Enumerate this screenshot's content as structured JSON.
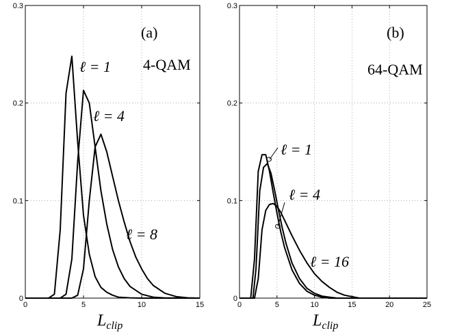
{
  "chart_data": [
    {
      "type": "line",
      "panel_label": "(a)",
      "modulation_label": "4-QAM",
      "xlabel": "L_clip",
      "xlim": [
        0,
        15
      ],
      "ylim": [
        0,
        0.3
      ],
      "xticks": [
        "0",
        "5",
        "10",
        "15"
      ],
      "yticks": [
        "0",
        "0.1",
        "0.2",
        "0.3"
      ],
      "grid": true,
      "series": [
        {
          "name": "ℓ = 1",
          "x": [
            0,
            2,
            2.5,
            3.0,
            3.5,
            4.0,
            4.5,
            5.0,
            5.5,
            6.0,
            6.5,
            7.0,
            7.5,
            8.0,
            9.0,
            10.0,
            15
          ],
          "y": [
            0,
            0,
            0.004,
            0.07,
            0.21,
            0.248,
            0.16,
            0.085,
            0.045,
            0.022,
            0.011,
            0.006,
            0.003,
            0.001,
            0.0003,
            0,
            0
          ]
        },
        {
          "name": "ℓ = 4",
          "x": [
            0,
            3,
            3.5,
            4.0,
            4.5,
            5.0,
            5.5,
            6.0,
            6.5,
            7.0,
            7.5,
            8.0,
            8.5,
            9.0,
            10.0,
            11.0,
            12.0,
            15
          ],
          "y": [
            0,
            0,
            0.004,
            0.04,
            0.14,
            0.213,
            0.2,
            0.155,
            0.11,
            0.076,
            0.05,
            0.032,
            0.02,
            0.012,
            0.004,
            0.001,
            0.0002,
            0
          ]
        },
        {
          "name": "ℓ = 8",
          "x": [
            0,
            4,
            4.5,
            5.0,
            5.5,
            6.0,
            6.5,
            7.0,
            7.5,
            8.0,
            8.5,
            9.0,
            9.5,
            10.0,
            10.5,
            11.0,
            12.0,
            13.0,
            14.0,
            15
          ],
          "y": [
            0,
            0,
            0.003,
            0.03,
            0.1,
            0.155,
            0.168,
            0.15,
            0.125,
            0.1,
            0.078,
            0.058,
            0.042,
            0.03,
            0.02,
            0.013,
            0.005,
            0.0015,
            0.0003,
            0
          ]
        }
      ],
      "annotations": [
        "ℓ = 1",
        "ℓ = 4",
        "ℓ = 8"
      ]
    },
    {
      "type": "line",
      "panel_label": "(b)",
      "modulation_label": "64-QAM",
      "xlabel": "L_clip",
      "xlim": [
        0,
        25
      ],
      "ylim": [
        0,
        0.3
      ],
      "xticks": [
        "0",
        "5",
        "10",
        "15",
        "20",
        "25"
      ],
      "yticks": [
        "0",
        "0.1",
        "0.2",
        "0.3"
      ],
      "grid": true,
      "series": [
        {
          "name": "ℓ = 1",
          "x": [
            0,
            1.5,
            2.0,
            2.5,
            3.0,
            3.5,
            4.0,
            4.5,
            5.0,
            5.5,
            6.0,
            7.0,
            8.0,
            9.0,
            10.0,
            11.0,
            12.0,
            25
          ],
          "y": [
            0,
            0,
            0.04,
            0.13,
            0.147,
            0.147,
            0.13,
            0.108,
            0.087,
            0.068,
            0.052,
            0.029,
            0.015,
            0.007,
            0.003,
            0.001,
            0,
            0
          ]
        },
        {
          "name": "ℓ = 4",
          "x": [
            0,
            1.8,
            2.2,
            2.7,
            3.2,
            3.7,
            4.2,
            4.7,
            5.2,
            5.7,
            6.2,
            7.0,
            8.0,
            9.0,
            10.0,
            11.0,
            12.0,
            13.0,
            25
          ],
          "y": [
            0,
            0,
            0.03,
            0.11,
            0.134,
            0.138,
            0.128,
            0.11,
            0.09,
            0.072,
            0.056,
            0.036,
            0.02,
            0.01,
            0.005,
            0.002,
            0.001,
            0,
            0
          ]
        },
        {
          "name": "ℓ = 16",
          "x": [
            0,
            2.0,
            2.5,
            3.0,
            3.5,
            4.0,
            4.5,
            5.0,
            5.5,
            6.0,
            7.0,
            8.0,
            9.0,
            10.0,
            11.0,
            12.0,
            13.0,
            14.0,
            15.0,
            16.0,
            25
          ],
          "y": [
            0,
            0,
            0.02,
            0.07,
            0.09,
            0.096,
            0.097,
            0.094,
            0.088,
            0.08,
            0.064,
            0.049,
            0.036,
            0.025,
            0.017,
            0.011,
            0.006,
            0.003,
            0.0015,
            0,
            0
          ]
        }
      ],
      "annotations": [
        "ℓ = 1",
        "ℓ = 4",
        "ℓ = 16"
      ]
    }
  ]
}
